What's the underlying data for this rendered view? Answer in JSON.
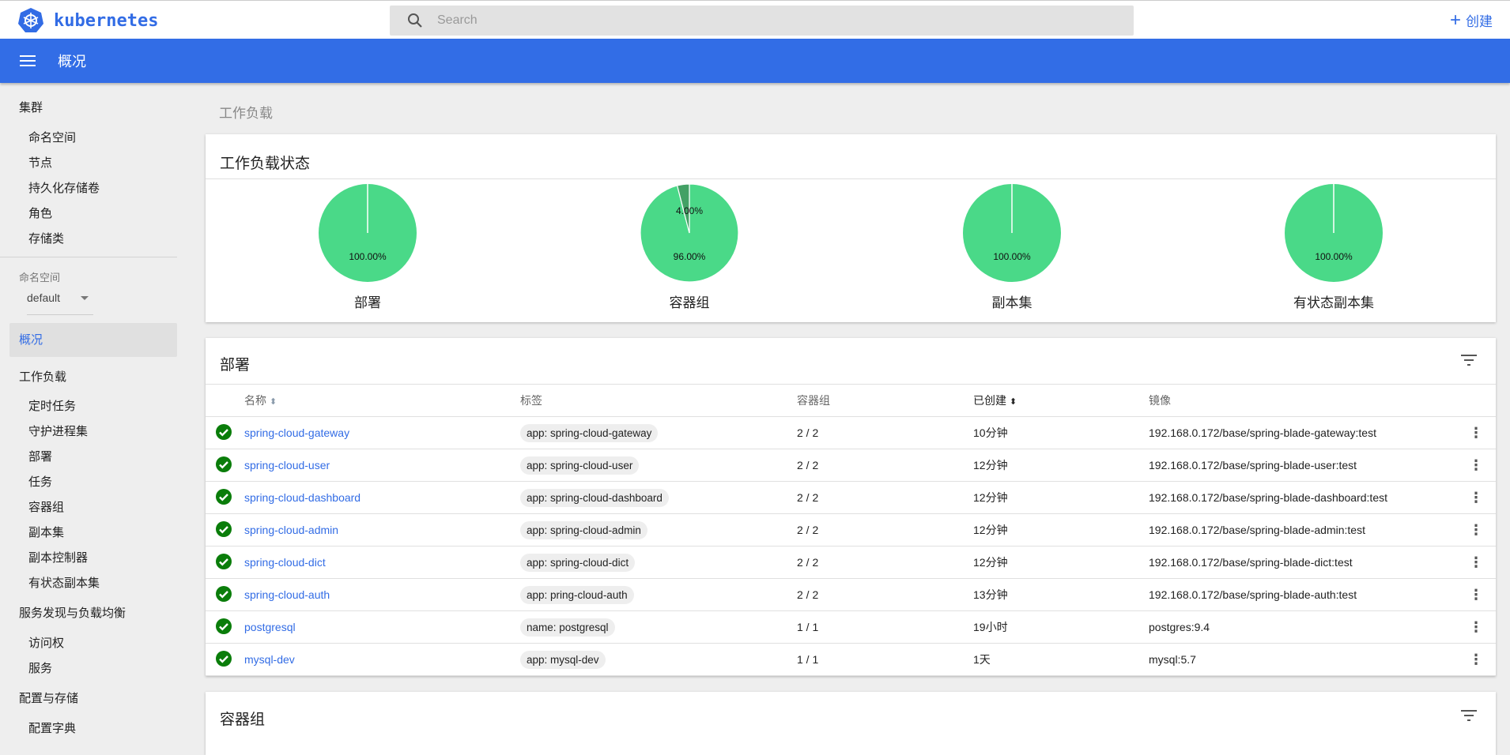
{
  "header": {
    "logo_text": "kubernetes",
    "search_placeholder": "Search",
    "create_label": "创建"
  },
  "titlebar": {
    "title": "概况"
  },
  "sidebar": {
    "cluster": "集群",
    "cluster_items": [
      "命名空间",
      "节点",
      "持久化存储卷",
      "角色",
      "存储类"
    ],
    "namespace_label": "命名空间",
    "namespace_value": "default",
    "overview": "概况",
    "workloads": "工作负载",
    "workload_items": [
      "定时任务",
      "守护进程集",
      "部署",
      "任务",
      "容器组",
      "副本集",
      "副本控制器",
      "有状态副本集"
    ],
    "discovery": "服务发现与负载均衡",
    "discovery_items": [
      "访问权",
      "服务"
    ],
    "config": "配置与存储",
    "config_items": [
      "配置字典"
    ]
  },
  "breadcrumb": "工作负载",
  "status_card": {
    "title": "工作负载状态",
    "colors": {
      "running": "#4ad988",
      "pending": "#43a165"
    },
    "pies": [
      {
        "label": "部署",
        "slices": [
          {
            "value": 100,
            "text": "100.00%"
          }
        ]
      },
      {
        "label": "容器组",
        "slices": [
          {
            "value": 96,
            "text": "96.00%"
          },
          {
            "value": 4,
            "text": "4.00%"
          }
        ]
      },
      {
        "label": "副本集",
        "slices": [
          {
            "value": 100,
            "text": "100.00%"
          }
        ]
      },
      {
        "label": "有状态副本集",
        "slices": [
          {
            "value": 100,
            "text": "100.00%"
          }
        ]
      }
    ]
  },
  "deployments": {
    "title": "部署",
    "columns": [
      "名称",
      "标签",
      "容器组",
      "已创建",
      "镜像"
    ],
    "rows": [
      {
        "name": "spring-cloud-gateway",
        "label": "app: spring-cloud-gateway",
        "pods": "2 / 2",
        "created": "10分钟",
        "image": "192.168.0.172/base/spring-blade-gateway:test"
      },
      {
        "name": "spring-cloud-user",
        "label": "app: spring-cloud-user",
        "pods": "2 / 2",
        "created": "12分钟",
        "image": "192.168.0.172/base/spring-blade-user:test"
      },
      {
        "name": "spring-cloud-dashboard",
        "label": "app: spring-cloud-dashboard",
        "pods": "2 / 2",
        "created": "12分钟",
        "image": "192.168.0.172/base/spring-blade-dashboard:test"
      },
      {
        "name": "spring-cloud-admin",
        "label": "app: spring-cloud-admin",
        "pods": "2 / 2",
        "created": "12分钟",
        "image": "192.168.0.172/base/spring-blade-admin:test"
      },
      {
        "name": "spring-cloud-dict",
        "label": "app: spring-cloud-dict",
        "pods": "2 / 2",
        "created": "12分钟",
        "image": "192.168.0.172/base/spring-blade-dict:test"
      },
      {
        "name": "spring-cloud-auth",
        "label": "app: pring-cloud-auth",
        "pods": "2 / 2",
        "created": "13分钟",
        "image": "192.168.0.172/base/spring-blade-auth:test"
      },
      {
        "name": "postgresql",
        "label": "name: postgresql",
        "pods": "1 / 1",
        "created": "19小时",
        "image": "postgres:9.4"
      },
      {
        "name": "mysql-dev",
        "label": "app: mysql-dev",
        "pods": "1 / 1",
        "created": "1天",
        "image": "mysql:5.7"
      }
    ]
  },
  "pods_card": {
    "title": "容器组"
  }
}
